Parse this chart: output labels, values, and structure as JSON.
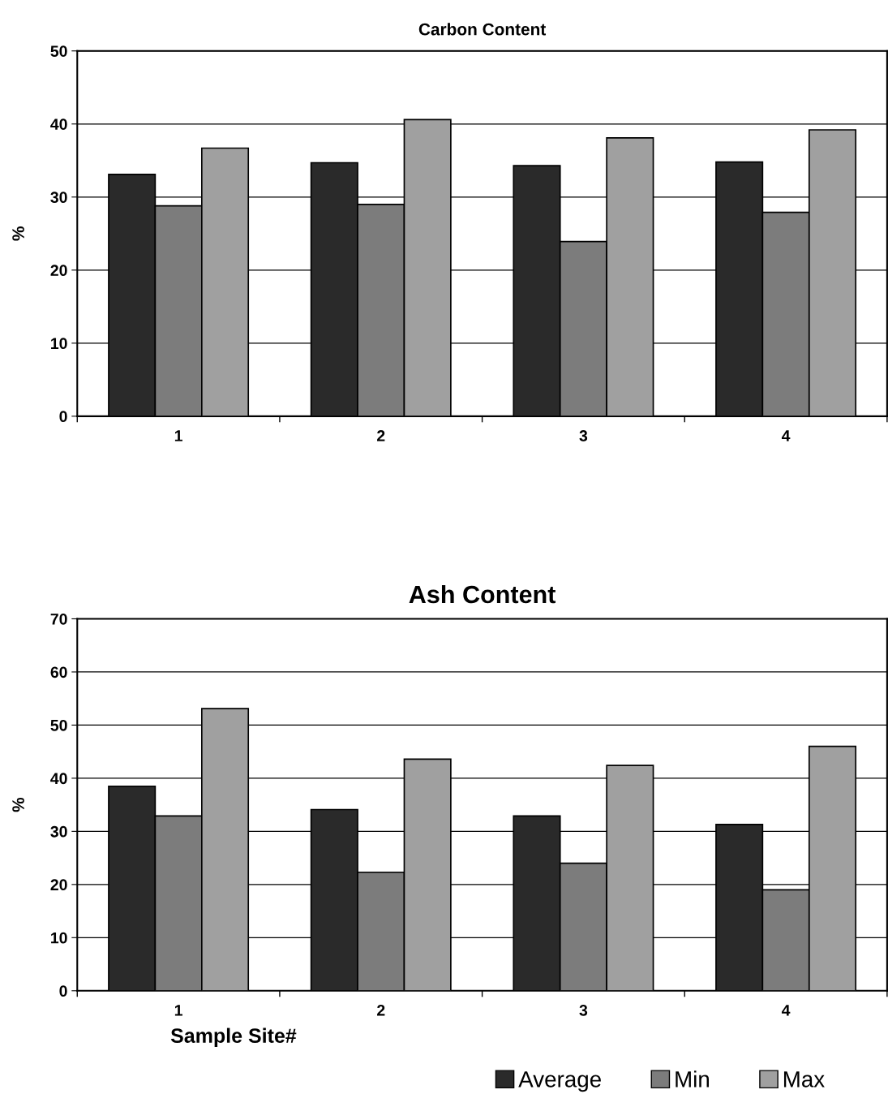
{
  "chart_data": [
    {
      "type": "bar",
      "title": "Carbon Content",
      "ylabel": "%",
      "categories": [
        "1",
        "2",
        "3",
        "4"
      ],
      "ylim": [
        0,
        50
      ],
      "yticks": [
        0,
        10,
        20,
        30,
        40,
        50
      ],
      "grid": "y",
      "series": [
        {
          "color": "#2a2a2a",
          "values": [
            33.1,
            34.7,
            34.3,
            34.8
          ]
        },
        {
          "color": "#7c7c7c",
          "values": [
            28.8,
            29.0,
            23.9,
            27.9
          ]
        },
        {
          "color": "#a0a0a0",
          "values": [
            36.7,
            40.6,
            38.1,
            39.2
          ]
        }
      ]
    },
    {
      "type": "bar",
      "title": "Ash Content",
      "ylabel": "%",
      "xlabel": "Sample Site#",
      "categories": [
        "1",
        "2",
        "3",
        "4"
      ],
      "ylim": [
        0,
        70
      ],
      "yticks": [
        0,
        10,
        20,
        30,
        40,
        50,
        60,
        70
      ],
      "grid": "y",
      "legend": "bottom",
      "series": [
        {
          "name": "Average",
          "color": "#2a2a2a",
          "values": [
            38.5,
            34.1,
            32.9,
            31.3
          ]
        },
        {
          "name": "Min",
          "color": "#7c7c7c",
          "values": [
            32.9,
            22.3,
            24.0,
            19.0
          ]
        },
        {
          "name": "Max",
          "color": "#a0a0a0",
          "values": [
            53.1,
            43.6,
            42.4,
            46.0
          ]
        }
      ]
    }
  ]
}
